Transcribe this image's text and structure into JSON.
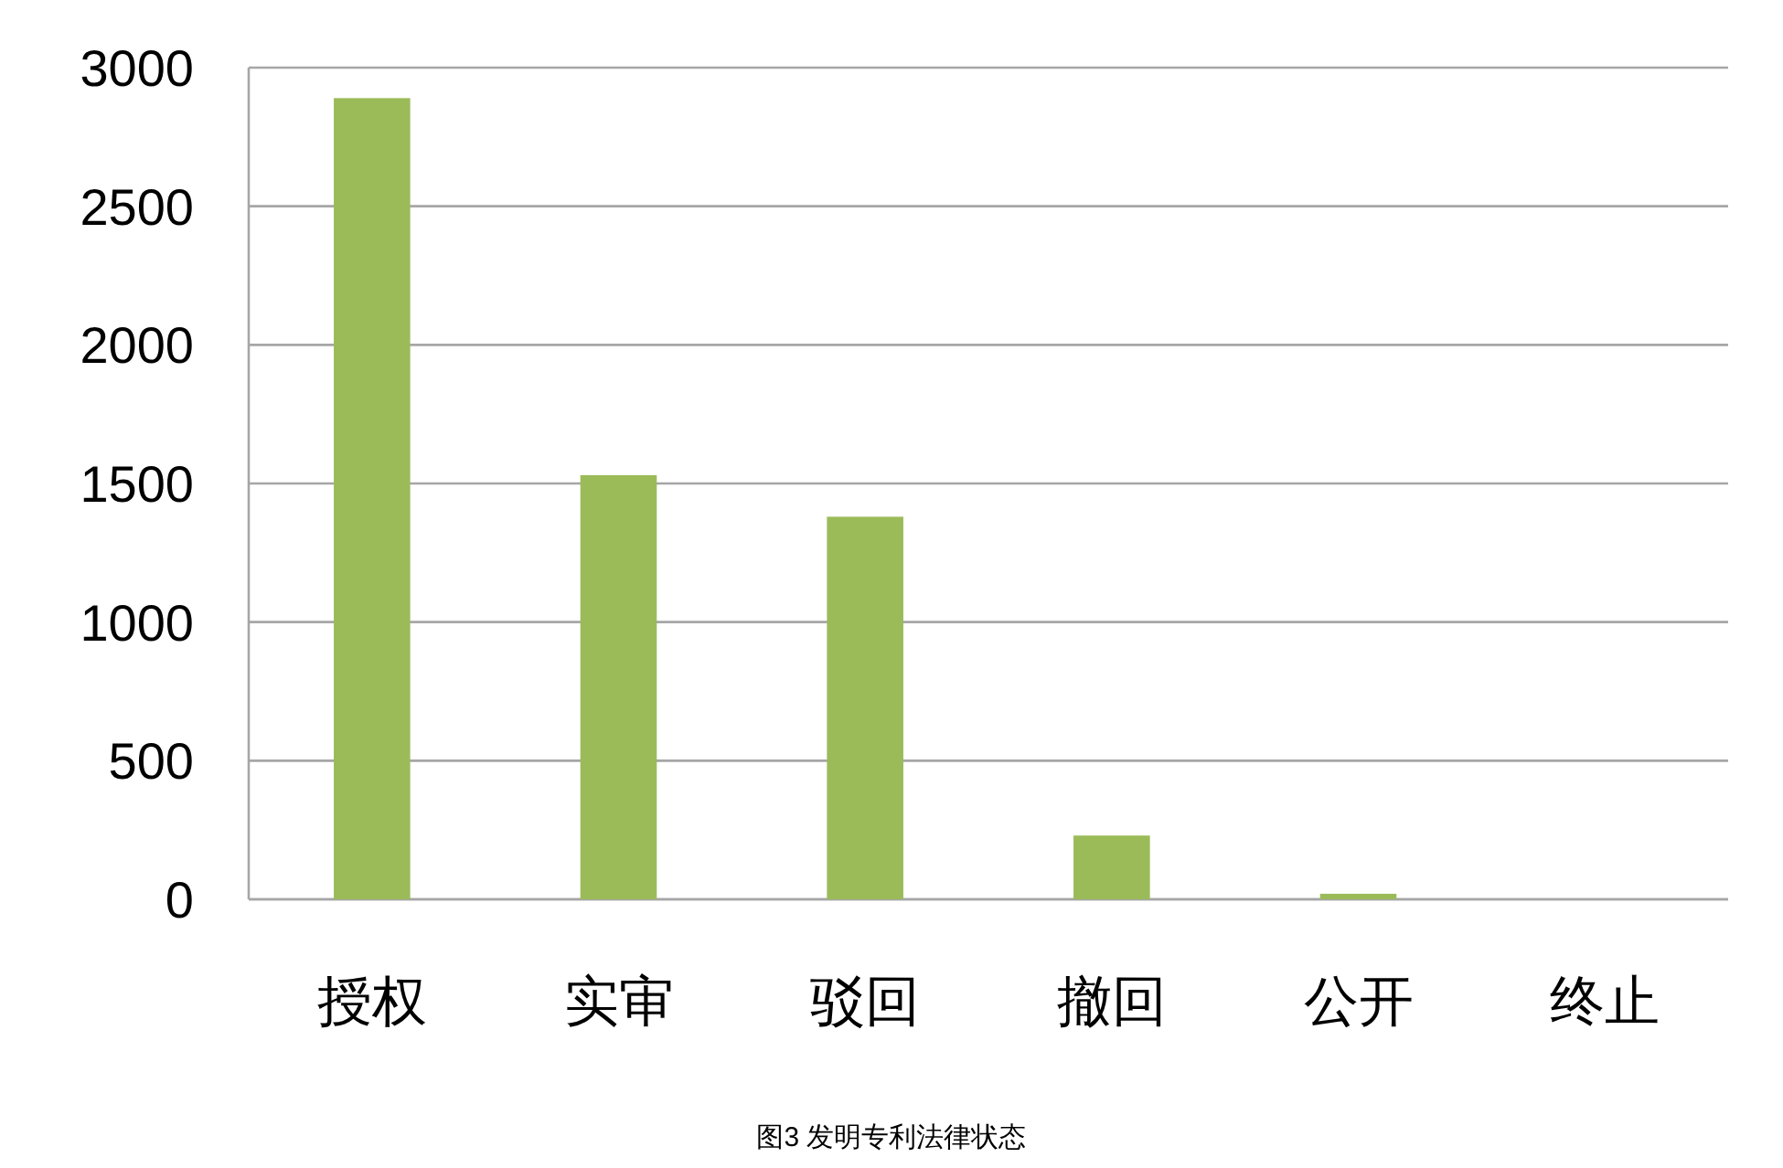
{
  "chart_data": {
    "type": "bar",
    "categories": [
      "授权",
      "实审",
      "驳回",
      "撤回",
      "公开",
      "终止"
    ],
    "values": [
      2890,
      1530,
      1380,
      230,
      20,
      0
    ],
    "color": "#9bbb59",
    "ylim": [
      0,
      3000
    ],
    "yticks": [
      0,
      500,
      1000,
      1500,
      2000,
      2500,
      3000
    ],
    "grid": "y",
    "annotations": [
      "图3 发明专利法律状态"
    ]
  }
}
